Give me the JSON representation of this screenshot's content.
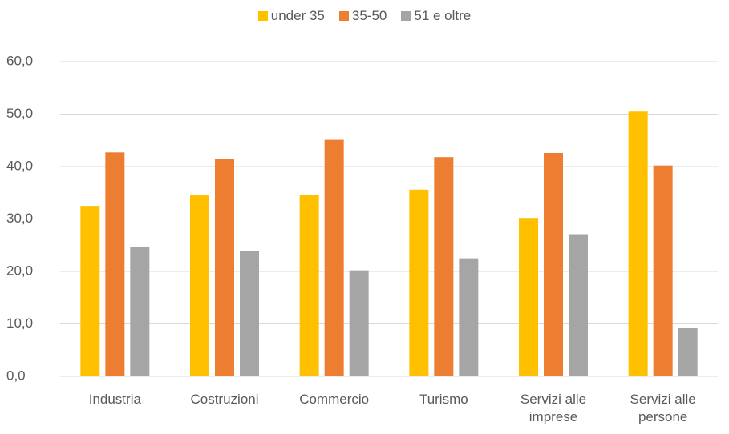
{
  "chart_data": {
    "type": "bar",
    "categories": [
      "Industria",
      "Costruzioni",
      "Commercio",
      "Turismo",
      "Servizi alle imprese",
      "Servizi alle persone"
    ],
    "series": [
      {
        "name": "under 35",
        "color": "#FFC000",
        "values": [
          32.5,
          34.5,
          34.6,
          35.6,
          30.2,
          50.5
        ]
      },
      {
        "name": "35-50",
        "color": "#ED7D31",
        "values": [
          42.7,
          41.5,
          45.1,
          41.8,
          42.6,
          40.2
        ]
      },
      {
        "name": "51 e oltre",
        "color": "#A5A5A5",
        "values": [
          24.7,
          23.9,
          20.2,
          22.5,
          27.1,
          9.2
        ]
      }
    ],
    "ylim": [
      0,
      60
    ],
    "yticks": [
      {
        "value": 0,
        "label": "0,0"
      },
      {
        "value": 10,
        "label": "10,0"
      },
      {
        "value": 20,
        "label": "20,0"
      },
      {
        "value": 30,
        "label": "30,0"
      },
      {
        "value": 40,
        "label": "40,0"
      },
      {
        "value": 50,
        "label": "50,0"
      },
      {
        "value": 60,
        "label": "60,0"
      }
    ],
    "grid": true,
    "legend": "top"
  }
}
